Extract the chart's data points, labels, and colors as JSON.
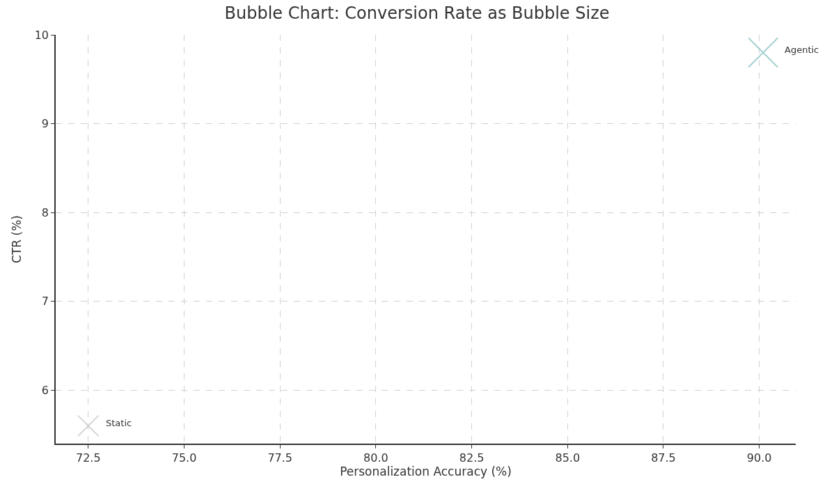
{
  "chart_data": {
    "type": "bubble",
    "title": "Bubble Chart: Conversion Rate as Bubble Size",
    "xlabel": "Personalization Accuracy (%)",
    "ylabel": "CTR (%)",
    "series": [
      {
        "name": "Static",
        "color": "#c4c4c4",
        "x": [
          72.5
        ],
        "values": [
          5.6
        ],
        "sizes": [
          0.5
        ]
      },
      {
        "name": "Agentic",
        "color": "#7fbfbf",
        "x": [
          90.1
        ],
        "values": [
          9.8
        ],
        "sizes": [
          1
        ]
      }
    ],
    "xlim": [
      71.65,
      90.95
    ],
    "xticks": [
      {
        "value": 72.5,
        "label": "72.5"
      },
      {
        "value": 75,
        "label": "75.0"
      },
      {
        "value": 77.5,
        "label": "77.5"
      },
      {
        "value": 80,
        "label": "80.0"
      },
      {
        "value": 82.5,
        "label": "82.5"
      },
      {
        "value": 85,
        "label": "85.0"
      },
      {
        "value": 87.5,
        "label": "87.5"
      },
      {
        "value": 90,
        "label": "90.0"
      }
    ],
    "ylim": [
      5.4,
      10
    ],
    "yticks": [
      6,
      7,
      8,
      9,
      10
    ],
    "grid": true,
    "legend": false,
    "marker": "cross"
  }
}
